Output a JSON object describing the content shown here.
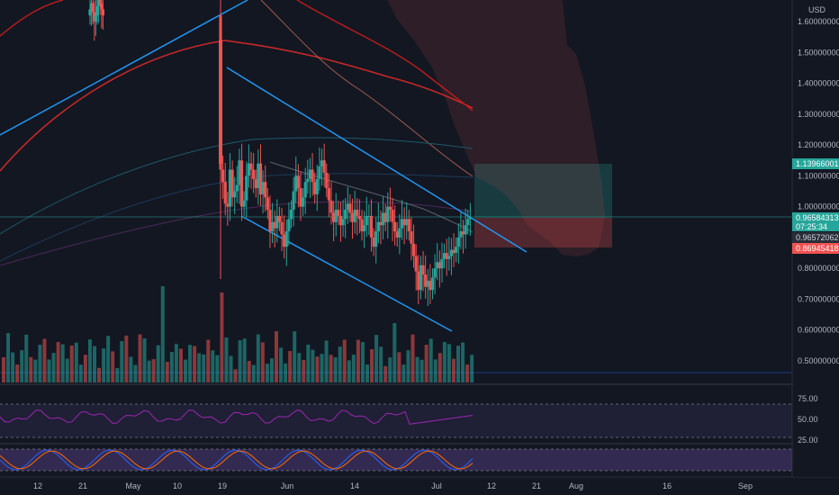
{
  "currency": "USD",
  "price_axis": {
    "ticks": [
      "1.60000000",
      "1.50000000",
      "1.40000000",
      "1.30000000",
      "1.20000000",
      "1.10000000",
      "1.00000000",
      "0.80000000",
      "0.70000000",
      "0.60000000",
      "0.50000000"
    ],
    "tags": {
      "target": "1.13966001",
      "last_price": "0.96584313",
      "countdown": "07:25:34",
      "entry": "0.96572062",
      "stop": "0.86945418"
    }
  },
  "rsi_axis": {
    "ticks": [
      "75.00",
      "50.00",
      "25.00"
    ]
  },
  "time_axis": {
    "ticks": [
      "12",
      "21",
      "May",
      "10",
      "19",
      "Jun",
      "14",
      "Jul",
      "12",
      "21",
      "Aug",
      "16",
      "Sep"
    ]
  },
  "colors": {
    "background": "#131722",
    "bull": "#26a69a",
    "bear": "#ef5350",
    "channel": "#2196f3",
    "ma_red": "#c62828",
    "rsi": "#9c27b0",
    "stoch_k": "#2962ff",
    "stoch_d": "#ff6d00",
    "profit_zone": "#26a69a",
    "loss_zone": "#ef5350"
  },
  "chart_data": {
    "type": "candlestick",
    "symbol_currency": "USD",
    "ylim": [
      0.44,
      1.68
    ],
    "y_ticks": [
      1.6,
      1.5,
      1.4,
      1.3,
      1.2,
      1.1,
      1.0,
      0.8,
      0.7,
      0.6,
      0.5
    ],
    "x_ticks": [
      "12",
      "21",
      "May",
      "10",
      "19",
      "Jun",
      "14",
      "Jul",
      "12",
      "21",
      "Aug",
      "16",
      "Sep"
    ],
    "position": {
      "target": 1.13966001,
      "entry": 0.96572062,
      "stop": 0.86945418,
      "last_price": 0.96584313
    },
    "candles_close": [
      1.64,
      1.66,
      1.63,
      1.6,
      1.62,
      1.65,
      1.67,
      1.66,
      1.64,
      1.62,
      1.12,
      1.08,
      1.01,
      1.0,
      1.12,
      1.03,
      1.05,
      1.07,
      1.15,
      1.0,
      1.02,
      1.1,
      1.14,
      1.12,
      1.09,
      1.06,
      1.14,
      1.04,
      1.08,
      1.03,
      0.99,
      0.92,
      0.95,
      0.93,
      0.97,
      0.95,
      0.91,
      0.87,
      0.92,
      0.96,
      0.99,
      1.05,
      1.1,
      1.06,
      1.0,
      1.03,
      1.08,
      1.09,
      1.12,
      1.08,
      1.04,
      1.09,
      1.13,
      1.15,
      1.11,
      1.06,
      1.02,
      0.98,
      0.95,
      0.99,
      0.97,
      0.94,
      0.96,
      0.99,
      1.01,
      0.98,
      0.95,
      0.99,
      0.97,
      0.96,
      0.92,
      0.94,
      0.97,
      0.97,
      0.9,
      0.87,
      0.92,
      0.95,
      0.94,
      0.98,
      0.95,
      1.0,
      0.99,
      0.95,
      0.92,
      0.9,
      0.93,
      0.96,
      0.94,
      0.96,
      0.92,
      0.88,
      0.84,
      0.79,
      0.73,
      0.81,
      0.78,
      0.74,
      0.76,
      0.73,
      0.77,
      0.8,
      0.82,
      0.8,
      0.83,
      0.85,
      0.83,
      0.84,
      0.86,
      0.85,
      0.87,
      0.9,
      0.92,
      0.91,
      0.94,
      0.96,
      0.966
    ]
  }
}
